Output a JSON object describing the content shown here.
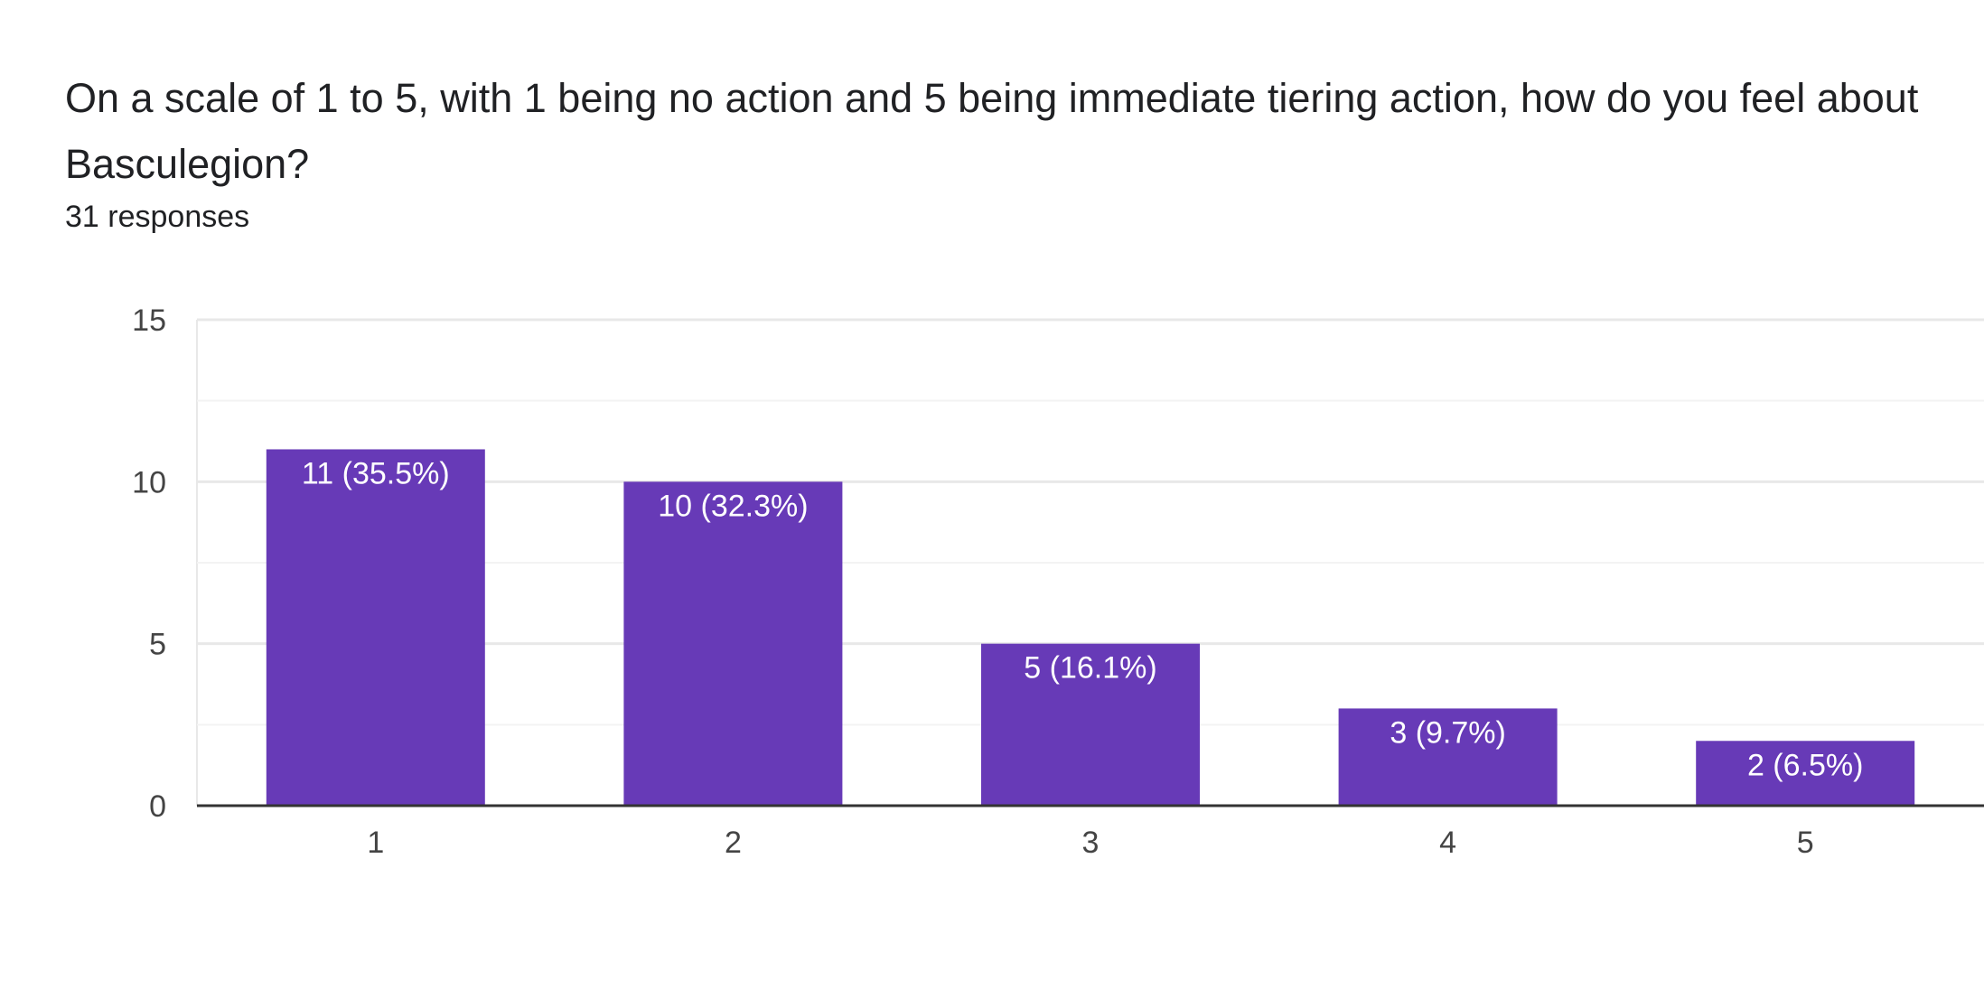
{
  "question": {
    "title": "On a scale of 1 to 5, with 1 being no action and 5 being immediate tiering action, how do you feel about Basculegion?",
    "responses": "31 responses"
  },
  "colors": {
    "bar": "#673ab7",
    "bar_label": "#ffffff",
    "gridline": "#e8e8e8",
    "minor_gridline": "#f3f3f3",
    "baseline": "#333333",
    "tick_text": "#444444"
  },
  "chart_data": {
    "type": "bar",
    "title": "On a scale of 1 to 5, with 1 being no action and 5 being immediate tiering action, how do you feel about Basculegion?",
    "xlabel": "",
    "ylabel": "",
    "categories": [
      "1",
      "2",
      "3",
      "4",
      "5"
    ],
    "values": [
      11,
      10,
      5,
      3,
      2
    ],
    "data_labels": [
      "11 (35.5%)",
      "10 (32.3%)",
      "5 (16.1%)",
      "3 (9.7%)",
      "2 (6.5%)"
    ],
    "ylim": [
      0,
      15
    ],
    "yticks": [
      "0",
      "5",
      "10",
      "15"
    ],
    "ytick_values": [
      0,
      5,
      10,
      15
    ],
    "minor_ytick_values": [
      2.5,
      7.5,
      12.5
    ],
    "grid": true,
    "legend": "none"
  }
}
